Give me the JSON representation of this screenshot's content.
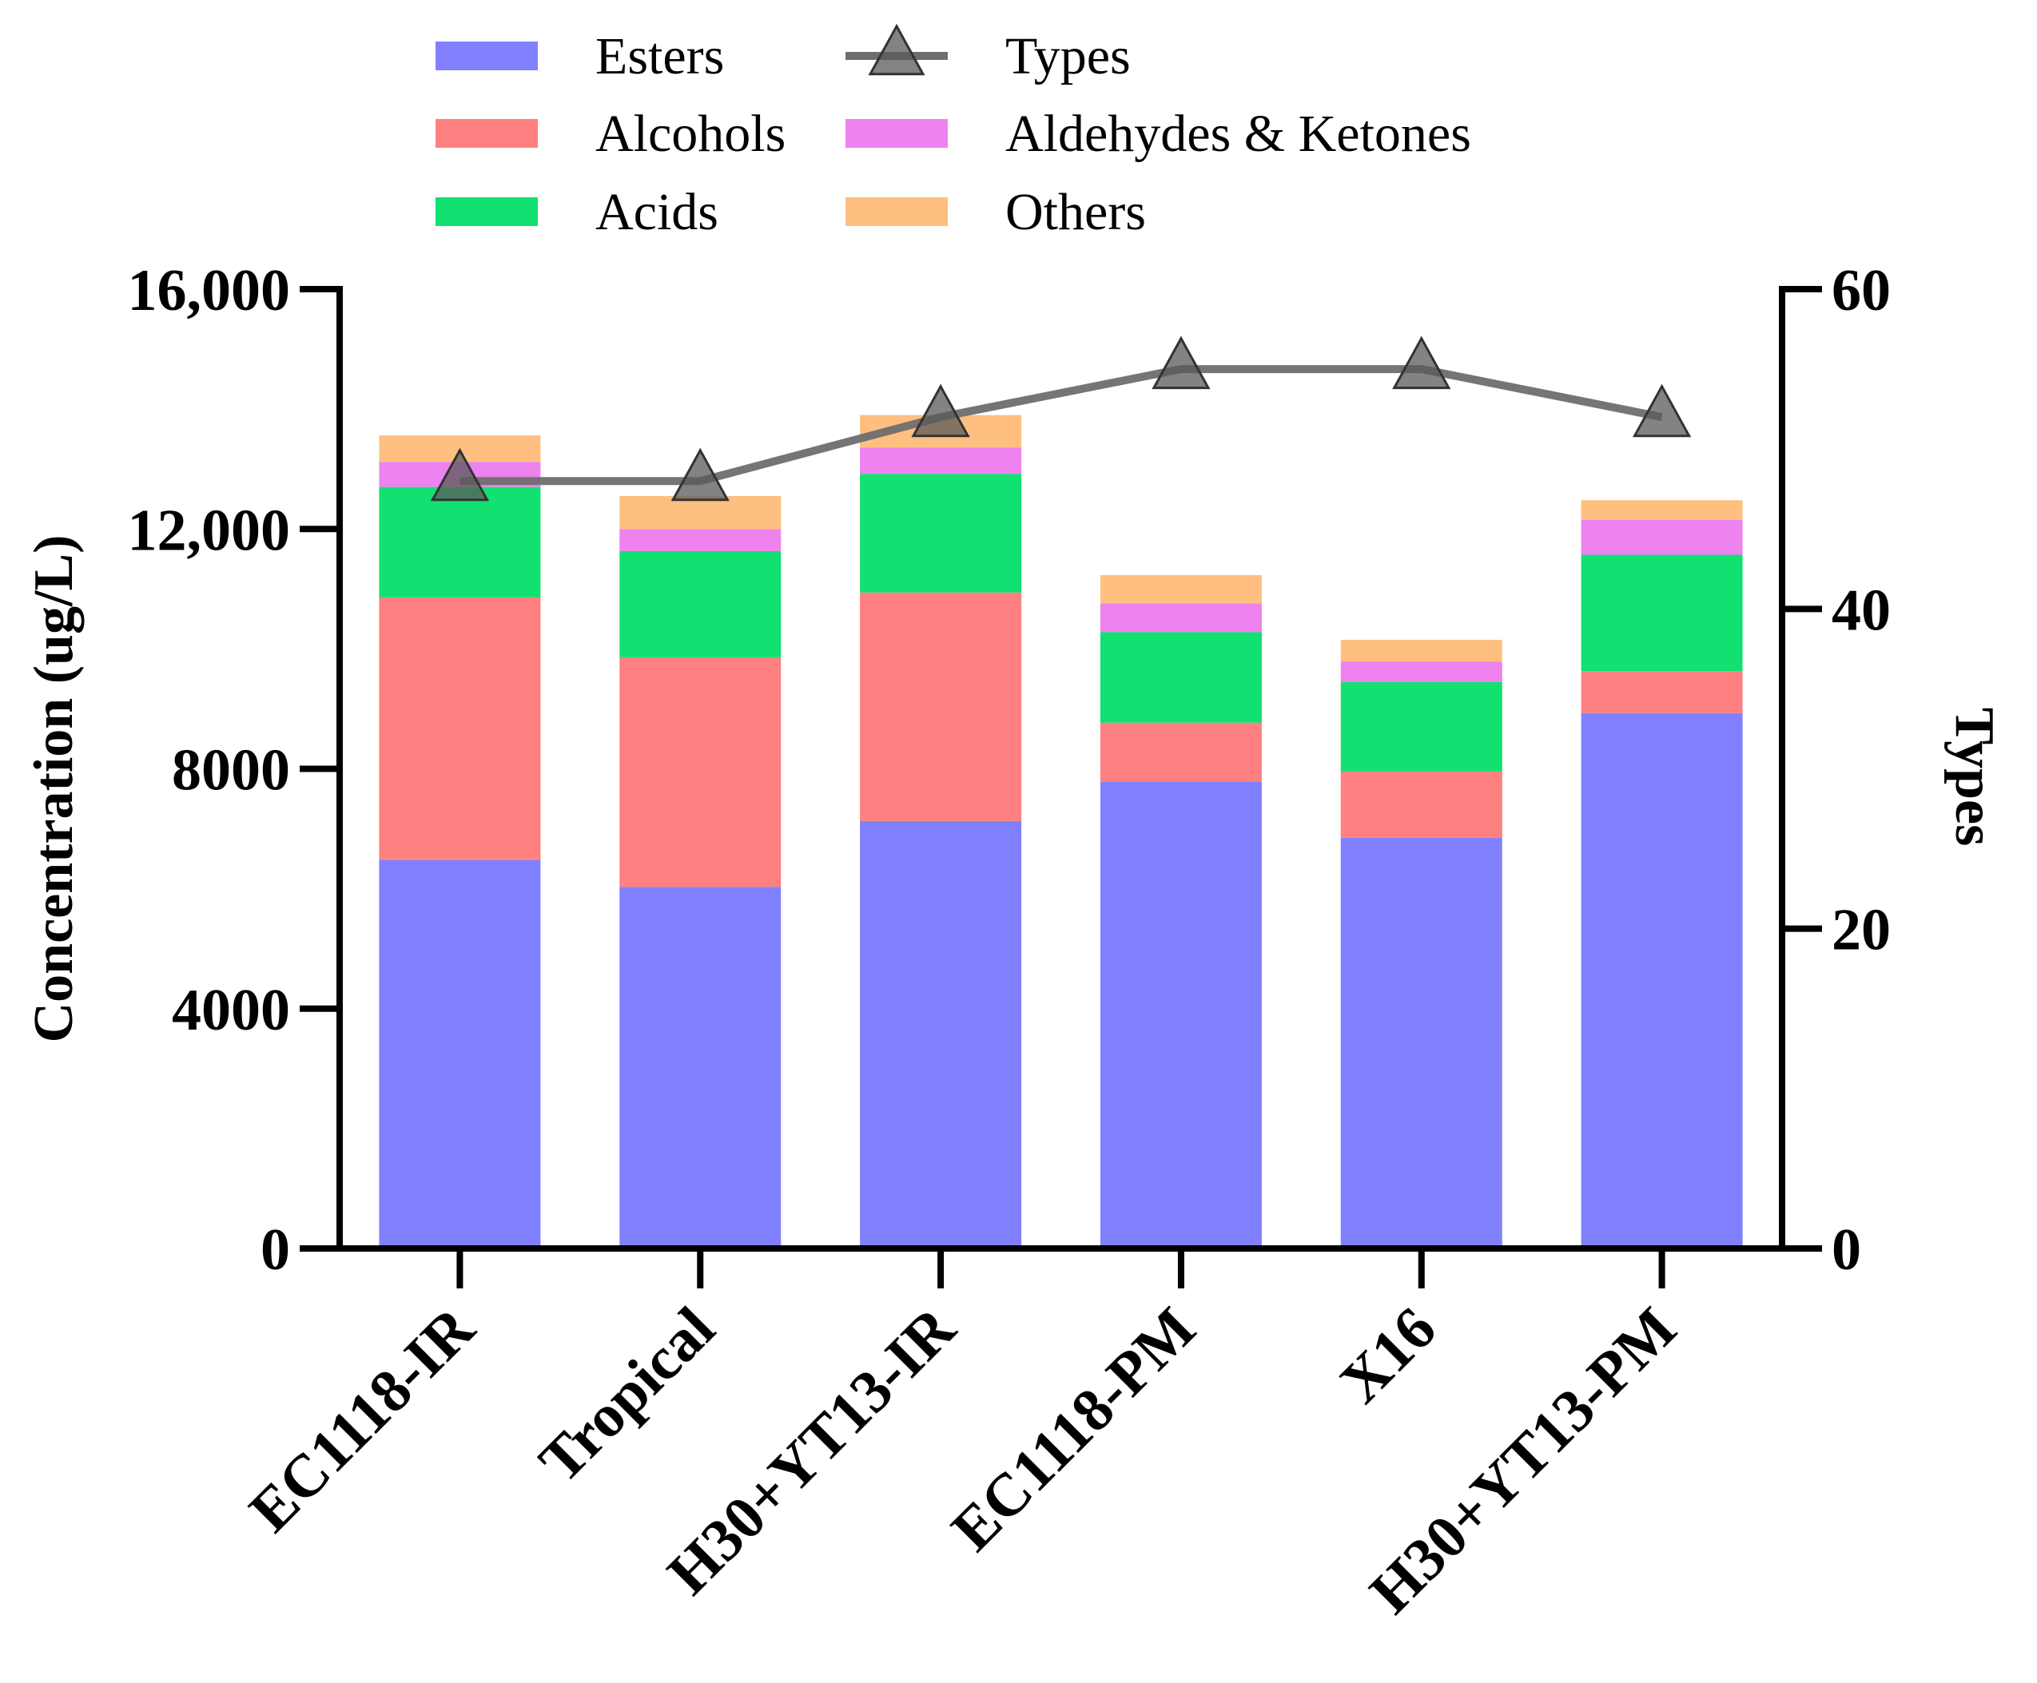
{
  "chart_data": {
    "type": "bar",
    "stacked": true,
    "categories": [
      "EC1118-IR",
      "Tropical",
      "H30+YT13-IR",
      "EC1118-PM",
      "X16",
      "H30+YT13-PM"
    ],
    "series": [
      {
        "name": "Esters",
        "color": "#8080ff",
        "values": [
          6480,
          6030,
          7130,
          7780,
          6850,
          8930
        ]
      },
      {
        "name": "Alcohols",
        "color": "#ff8080",
        "values": [
          4380,
          3830,
          3810,
          990,
          1110,
          700
        ]
      },
      {
        "name": "Acids",
        "color": "#12e070",
        "values": [
          1840,
          1770,
          1980,
          1510,
          1490,
          1940
        ]
      },
      {
        "name": "Aldehydes & Ketones",
        "color": "#ee82ee",
        "values": [
          420,
          370,
          440,
          480,
          340,
          580
        ]
      },
      {
        "name": "Others",
        "color": "#ffbf80",
        "values": [
          440,
          550,
          540,
          470,
          360,
          330
        ]
      }
    ],
    "line": {
      "name": "Types",
      "axis": "right",
      "color": "#6e6e6e",
      "marker": "triangle",
      "values": [
        48,
        48,
        52,
        55,
        55,
        52
      ]
    },
    "ylabel": "Concentration (ug/L)",
    "y2label": "Types",
    "ylim": [
      0,
      16000
    ],
    "y2lim": [
      0,
      60
    ],
    "yticks": [
      {
        "value": 0,
        "label": "0"
      },
      {
        "value": 4000,
        "label": "4000"
      },
      {
        "value": 8000,
        "label": "8000"
      },
      {
        "value": 12000,
        "label": "12,000"
      },
      {
        "value": 16000,
        "label": "16,000"
      }
    ],
    "y2ticks": [
      {
        "value": 0,
        "label": "0"
      },
      {
        "value": 20,
        "label": "20"
      },
      {
        "value": 40,
        "label": "40"
      },
      {
        "value": 60,
        "label": "60"
      }
    ],
    "legend": {
      "position": "top",
      "items": [
        {
          "label": "Esters",
          "kind": "bar",
          "color": "#8080ff"
        },
        {
          "label": "Types",
          "kind": "line",
          "color": "#6e6e6e"
        },
        {
          "label": "Alcohols",
          "kind": "bar",
          "color": "#ff8080"
        },
        {
          "label": "Aldehydes & Ketones",
          "kind": "bar",
          "color": "#ee82ee"
        },
        {
          "label": "Acids",
          "kind": "bar",
          "color": "#12e070"
        },
        {
          "label": "Others",
          "kind": "bar",
          "color": "#ffbf80"
        }
      ]
    },
    "grid": false
  }
}
